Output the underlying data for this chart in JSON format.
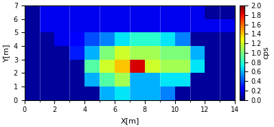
{
  "title": "",
  "xlabel": "X[m]",
  "ylabel": "Y[m]",
  "xlim": [
    0,
    14
  ],
  "ylim": [
    0,
    7
  ],
  "vmin": 0.0,
  "vmax": 2.0,
  "colorbar_label": "cps",
  "colorbar_ticks": [
    0.0,
    0.2,
    0.4,
    0.6,
    0.8,
    1.0,
    1.2,
    1.4,
    1.6,
    1.8,
    2.0
  ],
  "grid": {
    "nx": 14,
    "ny": 7,
    "values": [
      [
        0.05,
        0.05,
        0.05,
        0.05,
        0.05,
        0.6,
        0.7,
        0.6,
        0.6,
        0.5,
        0.05,
        0.05,
        0.05,
        0.05
      ],
      [
        0.05,
        0.05,
        0.05,
        0.05,
        0.6,
        0.9,
        1.1,
        0.6,
        0.6,
        0.7,
        0.7,
        0.05,
        0.05,
        0.05
      ],
      [
        0.05,
        0.05,
        0.05,
        0.05,
        0.9,
        1.2,
        1.4,
        1.85,
        1.2,
        1.1,
        1.1,
        0.7,
        0.05,
        0.05
      ],
      [
        0.05,
        0.05,
        0.05,
        0.3,
        0.6,
        1.0,
        1.2,
        1.1,
        1.1,
        1.0,
        1.0,
        0.6,
        0.05,
        0.05
      ],
      [
        0.05,
        0.05,
        0.2,
        0.25,
        0.4,
        0.5,
        0.7,
        0.8,
        0.8,
        0.7,
        0.5,
        0.05,
        0.05,
        0.05
      ],
      [
        0.05,
        0.2,
        0.2,
        0.2,
        0.2,
        0.2,
        0.2,
        0.2,
        0.2,
        0.2,
        0.2,
        0.2,
        0.2,
        0.2
      ],
      [
        0.05,
        0.2,
        0.2,
        0.2,
        0.2,
        0.2,
        0.2,
        0.2,
        0.2,
        0.2,
        0.2,
        0.2,
        0.05,
        0.05
      ]
    ]
  },
  "cmap": "jet",
  "figsize": [
    3.99,
    1.85
  ],
  "dpi": 100
}
